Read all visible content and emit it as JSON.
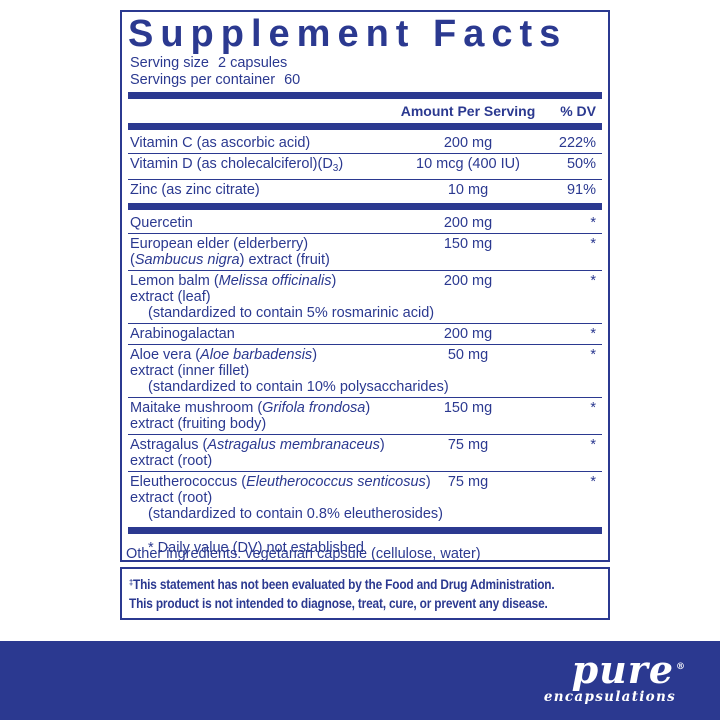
{
  "colors": {
    "primary": "#2b3990",
    "background": "#ffffff",
    "logo_text": "#ffffff"
  },
  "panel": {
    "title": "Supplement Facts",
    "serving_size_label": "Serving size",
    "serving_size_value": "2 capsules",
    "servings_per_container_label": "Servings per container",
    "servings_per_container_value": "60",
    "col_amount_header": "Amount Per Serving",
    "col_dv_header": "% DV",
    "footnote": "* Daily value (DV) not established"
  },
  "table": {
    "groups": [
      {
        "rows": [
          {
            "lines": [
              {
                "indent": false,
                "segments": [
                  {
                    "text": "Vitamin C (as ascorbic acid)"
                  }
                ]
              }
            ],
            "amount": "200 mg",
            "dv": "222%"
          },
          {
            "lines": [
              {
                "indent": false,
                "segments": [
                  {
                    "text": "Vitamin D (as cholecalciferol)(D"
                  },
                  {
                    "text": "3",
                    "subscript": true
                  },
                  {
                    "text": ")"
                  }
                ]
              }
            ],
            "amount": "10 mcg (400 IU)",
            "dv": "50%"
          },
          {
            "lines": [
              {
                "indent": false,
                "segments": [
                  {
                    "text": "Zinc (as zinc citrate)"
                  }
                ]
              }
            ],
            "amount": "10 mg",
            "dv": "91%"
          }
        ]
      },
      {
        "rows": [
          {
            "lines": [
              {
                "indent": false,
                "segments": [
                  {
                    "text": "Quercetin"
                  }
                ]
              }
            ],
            "amount": "200 mg",
            "dv": "*"
          },
          {
            "lines": [
              {
                "indent": false,
                "segments": [
                  {
                    "text": "European elder (elderberry)"
                  }
                ]
              },
              {
                "indent": false,
                "segments": [
                  {
                    "text": "("
                  },
                  {
                    "text": "Sambucus nigra",
                    "italic": true
                  },
                  {
                    "text": ") extract (fruit)"
                  }
                ]
              }
            ],
            "amount": "150 mg",
            "dv": "*"
          },
          {
            "lines": [
              {
                "indent": false,
                "segments": [
                  {
                    "text": "Lemon balm ("
                  },
                  {
                    "text": "Melissa officinalis",
                    "italic": true
                  },
                  {
                    "text": ")"
                  }
                ]
              },
              {
                "indent": false,
                "segments": [
                  {
                    "text": "extract (leaf)"
                  }
                ]
              },
              {
                "indent": true,
                "segments": [
                  {
                    "text": "(standardized to contain 5% rosmarinic acid)"
                  }
                ]
              }
            ],
            "amount": "200 mg",
            "dv": "*"
          },
          {
            "lines": [
              {
                "indent": false,
                "segments": [
                  {
                    "text": "Arabinogalactan"
                  }
                ]
              }
            ],
            "amount": "200 mg",
            "dv": "*"
          },
          {
            "lines": [
              {
                "indent": false,
                "segments": [
                  {
                    "text": "Aloe vera ("
                  },
                  {
                    "text": "Aloe barbadensis",
                    "italic": true
                  },
                  {
                    "text": ")"
                  }
                ]
              },
              {
                "indent": false,
                "segments": [
                  {
                    "text": "extract (inner fillet)"
                  }
                ]
              },
              {
                "indent": true,
                "segments": [
                  {
                    "text": "(standardized to contain 10% polysaccharides)"
                  }
                ]
              }
            ],
            "amount": "50 mg",
            "dv": "*"
          },
          {
            "lines": [
              {
                "indent": false,
                "segments": [
                  {
                    "text": "Maitake mushroom ("
                  },
                  {
                    "text": "Grifola frondosa",
                    "italic": true
                  },
                  {
                    "text": ")"
                  }
                ]
              },
              {
                "indent": false,
                "segments": [
                  {
                    "text": "extract (fruiting body)"
                  }
                ]
              }
            ],
            "amount": "150 mg",
            "dv": "*"
          },
          {
            "lines": [
              {
                "indent": false,
                "segments": [
                  {
                    "text": "Astragalus ("
                  },
                  {
                    "text": "Astragalus membranaceus",
                    "italic": true
                  },
                  {
                    "text": ")"
                  }
                ]
              },
              {
                "indent": false,
                "segments": [
                  {
                    "text": "extract (root)"
                  }
                ]
              }
            ],
            "amount": "75 mg",
            "dv": "*"
          },
          {
            "lines": [
              {
                "indent": false,
                "segments": [
                  {
                    "text": "Eleutherococcus ("
                  },
                  {
                    "text": "Eleutherococcus senticosus",
                    "italic": true
                  },
                  {
                    "text": ")"
                  }
                ]
              },
              {
                "indent": false,
                "segments": [
                  {
                    "text": "extract (root)"
                  }
                ]
              },
              {
                "indent": true,
                "segments": [
                  {
                    "text": "(standardized to contain 0.8% eleutherosides)"
                  }
                ]
              }
            ],
            "amount": "75 mg",
            "dv": "*"
          }
        ]
      }
    ]
  },
  "other_ingredients": "Other ingredients: vegetarian capsule (cellulose, water)",
  "disclaimer": {
    "mark": "‡",
    "line1": "This statement has not been evaluated by the Food and Drug Administration.",
    "line2": "This product is not intended to diagnose, treat, cure, or prevent any disease."
  },
  "logo": {
    "primary": "pure",
    "registered": "®",
    "secondary": "encapsulations"
  }
}
